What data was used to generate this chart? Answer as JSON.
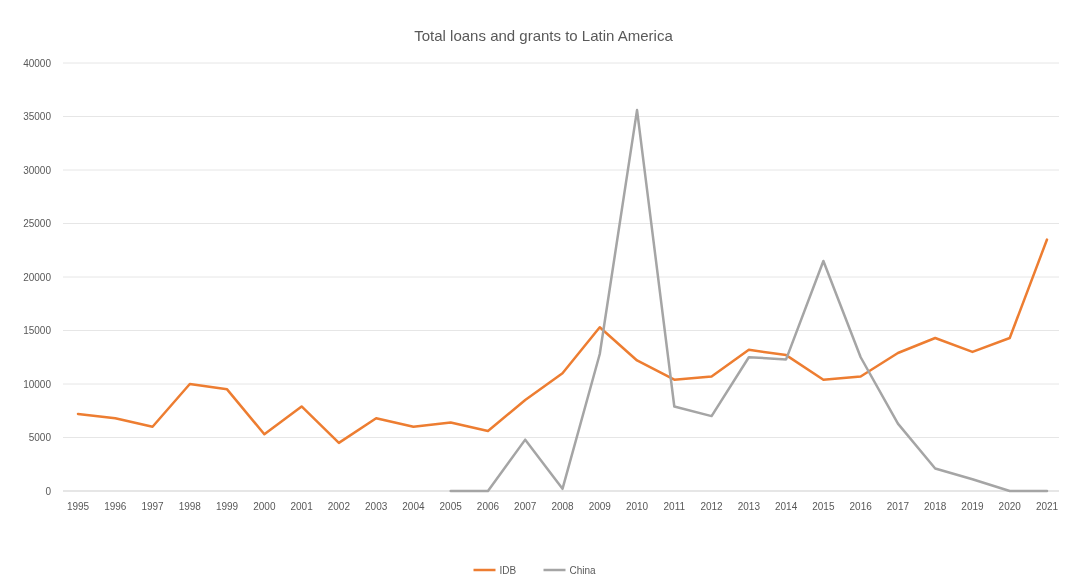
{
  "chart_data": {
    "type": "line",
    "title": "Total loans and grants to Latin America",
    "categories": [
      "1995",
      "1996",
      "1997",
      "1998",
      "1999",
      "2000",
      "2001",
      "2002",
      "2003",
      "2004",
      "2005",
      "2006",
      "2007",
      "2008",
      "2009",
      "2010",
      "2011",
      "2012",
      "2013",
      "2014",
      "2015",
      "2016",
      "2017",
      "2018",
      "2019",
      "2020",
      "2021"
    ],
    "series": [
      {
        "name": "IDB",
        "color": "#ed7d31",
        "values": [
          7200,
          6800,
          6000,
          10000,
          9500,
          5300,
          7900,
          4500,
          6800,
          6000,
          6400,
          5600,
          8500,
          11000,
          15300,
          12200,
          10400,
          10700,
          13200,
          12700,
          10400,
          10700,
          12900,
          14300,
          13000,
          14300,
          23500
        ]
      },
      {
        "name": "China",
        "color": "#a5a5a5",
        "values": [
          null,
          null,
          null,
          null,
          null,
          null,
          null,
          null,
          null,
          null,
          0,
          0,
          4800,
          200,
          12800,
          35600,
          7900,
          7000,
          12500,
          12300,
          21500,
          12500,
          6300,
          2100,
          1100,
          0,
          0
        ]
      }
    ],
    "ylim": [
      0,
      40000
    ],
    "yticks": [
      0,
      5000,
      10000,
      15000,
      20000,
      25000,
      30000,
      35000,
      40000
    ],
    "grid": "y",
    "legend": "bottom",
    "marker": "none",
    "line_style": "solid"
  }
}
